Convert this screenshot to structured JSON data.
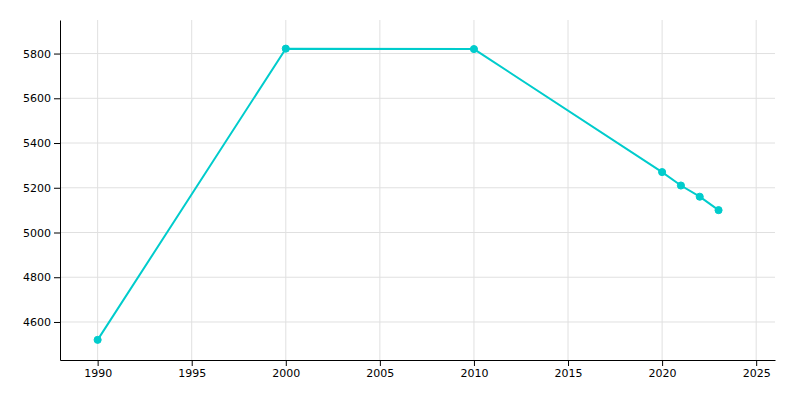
{
  "chart_data": {
    "type": "line",
    "x": [
      1990,
      2000,
      2010,
      2020,
      2021,
      2022,
      2023
    ],
    "values": [
      4520,
      5822,
      5820,
      5270,
      5210,
      5160,
      5100
    ],
    "color": "#00CCCC",
    "marker": "circle",
    "xlim": [
      1988,
      2026
    ],
    "xticks": [
      1990,
      1995,
      2000,
      2005,
      2010,
      2015,
      2020,
      2025
    ],
    "ylim": [
      4430,
      5950
    ],
    "yticks": [
      4600,
      4800,
      5000,
      5200,
      5400,
      5600,
      5800
    ],
    "grid": true
  }
}
